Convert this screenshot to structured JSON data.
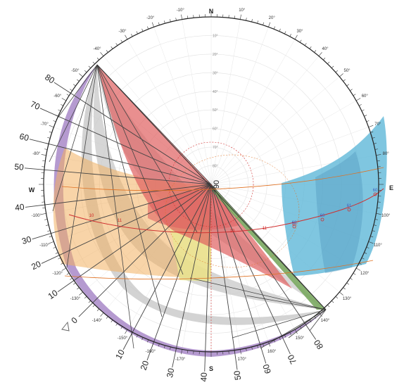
{
  "cardinals": {
    "north": "N",
    "east": "E",
    "south": "S",
    "west": "W"
  },
  "center_label": "90",
  "azimuth_labels": [
    {
      "az": -10,
      "text": "-10°"
    },
    {
      "az": 10,
      "text": "10°"
    },
    {
      "az": -20,
      "text": "-20°"
    },
    {
      "az": 20,
      "text": "20°"
    },
    {
      "az": -30,
      "text": "-30°"
    },
    {
      "az": 30,
      "text": "30°"
    },
    {
      "az": -40,
      "text": "-40°"
    },
    {
      "az": 40,
      "text": "40°"
    },
    {
      "az": -50,
      "text": "-50°"
    },
    {
      "az": 50,
      "text": "50°"
    },
    {
      "az": -60,
      "text": "-60°"
    },
    {
      "az": 60,
      "text": "60°"
    },
    {
      "az": -70,
      "text": "-70°"
    },
    {
      "az": 70,
      "text": "70°"
    },
    {
      "az": -80,
      "text": "-80°"
    },
    {
      "az": 80,
      "text": "80°"
    },
    {
      "az": -100,
      "text": "-100°"
    },
    {
      "az": 100,
      "text": "100°"
    },
    {
      "az": -110,
      "text": "-110°"
    },
    {
      "az": 110,
      "text": "110°"
    },
    {
      "az": -120,
      "text": "-120°"
    },
    {
      "az": 120,
      "text": "120°"
    },
    {
      "az": -130,
      "text": "-130°"
    },
    {
      "az": 130,
      "text": "130°"
    },
    {
      "az": -140,
      "text": "-140°"
    },
    {
      "az": 140,
      "text": "140°"
    },
    {
      "az": -150,
      "text": "-150°"
    },
    {
      "az": 150,
      "text": "150°"
    },
    {
      "az": -160,
      "text": "-160°"
    },
    {
      "az": 160,
      "text": "160°"
    },
    {
      "az": -170,
      "text": "-170°"
    },
    {
      "az": 170,
      "text": "170°"
    }
  ],
  "altitude_labels": [
    "10°",
    "20°",
    "30°",
    "40°",
    "50°",
    "60°",
    "70°",
    "80°"
  ],
  "outer_angle_labels": [
    {
      "az": -57,
      "text": "80"
    },
    {
      "az": -66,
      "text": "70"
    },
    {
      "az": -76,
      "text": "60"
    },
    {
      "az": -85,
      "text": "50"
    },
    {
      "az": -97,
      "text": "40"
    },
    {
      "az": -107,
      "text": "30"
    },
    {
      "az": -115,
      "text": "20"
    },
    {
      "az": -125,
      "text": "10"
    },
    {
      "az": -135,
      "text": "0"
    },
    {
      "az": -152,
      "text": "10"
    },
    {
      "az": -160,
      "text": "20"
    },
    {
      "az": -168,
      "text": "30"
    },
    {
      "az": -178,
      "text": "40"
    },
    {
      "az": 172,
      "text": "50"
    },
    {
      "az": 163,
      "text": "60"
    },
    {
      "az": 155,
      "text": "70"
    },
    {
      "az": 146,
      "text": "80"
    }
  ],
  "hour_labels_south": [
    "10",
    "11",
    "10",
    "11",
    "10"
  ],
  "hour_labels_east": [
    "60",
    "60",
    "61",
    "60"
  ],
  "colors": {
    "red": "#e06060",
    "orange": "#f2b060",
    "yellow": "#e8e690",
    "grey": "#c8c8c8",
    "purple": "#a888c8",
    "blue": "#5fb8d8",
    "green": "#7aa860",
    "sunpath": "#d03030"
  }
}
